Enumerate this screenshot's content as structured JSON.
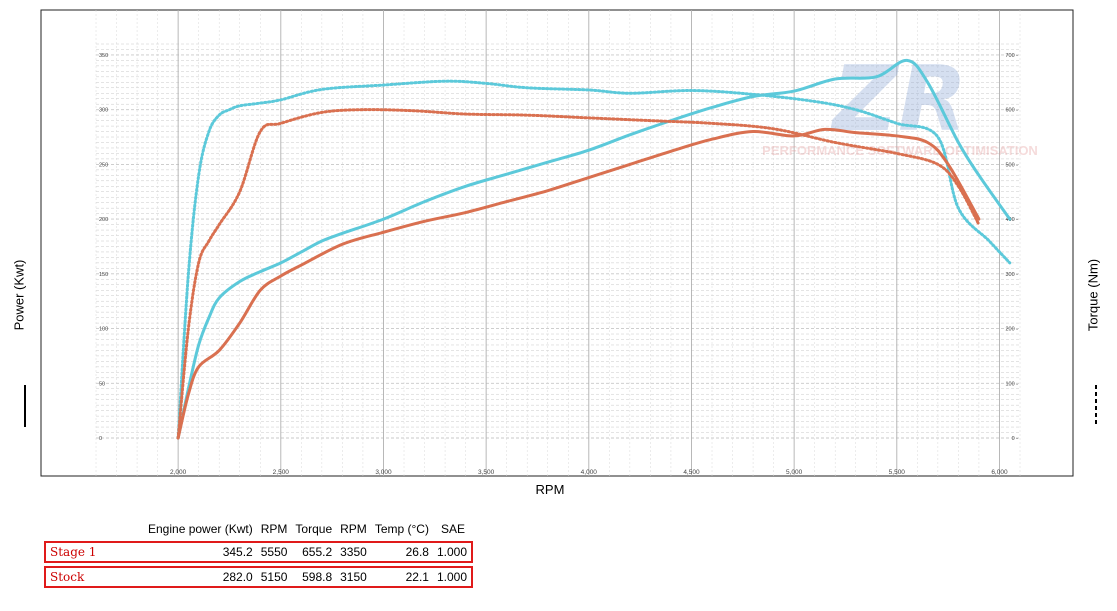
{
  "chart_data": {
    "type": "line",
    "xlabel": "RPM",
    "ylabel_left": "Power (Kwt)",
    "ylabel_right": "Torque (Nm)",
    "xlim": [
      1600,
      6100
    ],
    "x_ticks": [
      "2,000",
      "2,500",
      "3,000",
      "3,500",
      "4,000",
      "4,500",
      "5,000",
      "5,500",
      "6,000"
    ],
    "x_tick_values": [
      2000,
      2500,
      3000,
      3500,
      4000,
      4500,
      5000,
      5500,
      6000
    ],
    "y_left_lim": [
      0,
      360
    ],
    "y_left_ticks": [
      "0",
      "50",
      "100",
      "150",
      "200",
      "250",
      "300",
      "350"
    ],
    "y_left_tick_values": [
      0,
      50,
      100,
      150,
      200,
      250,
      300,
      350
    ],
    "y_right_lim": [
      0,
      720
    ],
    "y_right_ticks": [
      "0",
      "100",
      "200",
      "300",
      "400",
      "500",
      "600",
      "700"
    ],
    "y_right_tick_values": [
      0,
      100,
      200,
      300,
      400,
      500,
      600,
      700
    ],
    "grid": true,
    "watermark": {
      "logo": "ZR",
      "text": "PERFORMANCE SOFTWARE OPTIMISATION"
    },
    "series": [
      {
        "name": "Stage 1",
        "measure": "power",
        "axis": "left",
        "style": "solid",
        "color": "#5cc9da",
        "x": [
          2000,
          2050,
          2100,
          2150,
          2200,
          2300,
          2400,
          2500,
          2600,
          2700,
          2800,
          3000,
          3200,
          3400,
          3600,
          3800,
          4000,
          4200,
          4400,
          4600,
          4800,
          5000,
          5200,
          5400,
          5550,
          5650,
          5800,
          5900,
          6050
        ],
        "y": [
          0,
          45,
          85,
          110,
          128,
          143,
          152,
          160,
          170,
          180,
          187,
          200,
          216,
          230,
          241,
          252,
          263,
          277,
          290,
          302,
          312,
          317,
          328,
          330,
          345,
          325,
          270,
          240,
          200
        ]
      },
      {
        "name": "Stage 1",
        "measure": "torque",
        "axis": "right",
        "style": "dashed",
        "color": "#5cc9da",
        "x": [
          2000,
          2050,
          2100,
          2150,
          2200,
          2250,
          2300,
          2400,
          2500,
          2700,
          3000,
          3300,
          3500,
          3700,
          4000,
          4200,
          4500,
          4800,
          5100,
          5300,
          5500,
          5700,
          5800,
          5950,
          6050
        ],
        "y": [
          0,
          300,
          480,
          560,
          590,
          600,
          607,
          612,
          618,
          637,
          645,
          652,
          648,
          640,
          636,
          630,
          635,
          628,
          615,
          600,
          575,
          550,
          420,
          360,
          320
        ]
      },
      {
        "name": "Stock",
        "measure": "power",
        "axis": "left",
        "style": "solid",
        "color": "#d97050",
        "x": [
          2000,
          2050,
          2100,
          2200,
          2300,
          2400,
          2500,
          2600,
          2800,
          3000,
          3200,
          3400,
          3600,
          3800,
          4000,
          4200,
          4400,
          4600,
          4800,
          5000,
          5150,
          5300,
          5500,
          5650,
          5750,
          5900
        ],
        "y": [
          0,
          40,
          65,
          80,
          105,
          135,
          148,
          158,
          177,
          188,
          198,
          206,
          216,
          226,
          238,
          250,
          262,
          273,
          280,
          276,
          282,
          279,
          276,
          270,
          250,
          200
        ]
      },
      {
        "name": "Stock",
        "measure": "torque",
        "axis": "right",
        "style": "dashed",
        "color": "#d97050",
        "x": [
          2000,
          2050,
          2100,
          2150,
          2200,
          2300,
          2400,
          2500,
          2700,
          2900,
          3150,
          3400,
          3700,
          4000,
          4300,
          4600,
          4900,
          5200,
          5500,
          5700,
          5800,
          5900
        ],
        "y": [
          0,
          200,
          320,
          360,
          390,
          450,
          560,
          575,
          595,
          600,
          598,
          592,
          590,
          585,
          580,
          575,
          565,
          540,
          520,
          500,
          460,
          390
        ]
      }
    ]
  },
  "table": {
    "headers": [
      "Engine power (Kwt)",
      "RPM",
      "Torque",
      "RPM",
      "Temp (°C)",
      "SAE"
    ],
    "rows": [
      {
        "name": "Stage 1",
        "power": "345.2",
        "power_rpm": "5550",
        "torque": "655.2",
        "torque_rpm": "3350",
        "temp": "26.8",
        "sae": "1.000"
      },
      {
        "name": "Stock",
        "power": "282.0",
        "power_rpm": "5150",
        "torque": "598.8",
        "torque_rpm": "3150",
        "temp": "22.1",
        "sae": "1.000"
      }
    ]
  }
}
